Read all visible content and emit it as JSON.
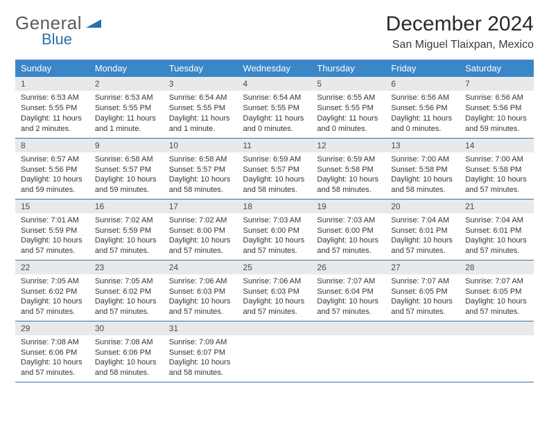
{
  "logo": {
    "text1": "General",
    "text2": "Blue"
  },
  "title": "December 2024",
  "location": "San Miguel Tlaixpan, Mexico",
  "colors": {
    "header_bg": "#3a87c8",
    "header_text": "#ffffff",
    "daynum_bg": "#e7e9eb",
    "row_border": "#3a6fa0",
    "logo_gray": "#5a5a5a",
    "logo_blue": "#2a6fb0"
  },
  "week_headers": [
    "Sunday",
    "Monday",
    "Tuesday",
    "Wednesday",
    "Thursday",
    "Friday",
    "Saturday"
  ],
  "days": [
    {
      "n": "1",
      "sr": "6:53 AM",
      "ss": "5:55 PM",
      "dl": "11 hours and 2 minutes."
    },
    {
      "n": "2",
      "sr": "6:53 AM",
      "ss": "5:55 PM",
      "dl": "11 hours and 1 minute."
    },
    {
      "n": "3",
      "sr": "6:54 AM",
      "ss": "5:55 PM",
      "dl": "11 hours and 1 minute."
    },
    {
      "n": "4",
      "sr": "6:54 AM",
      "ss": "5:55 PM",
      "dl": "11 hours and 0 minutes."
    },
    {
      "n": "5",
      "sr": "6:55 AM",
      "ss": "5:55 PM",
      "dl": "11 hours and 0 minutes."
    },
    {
      "n": "6",
      "sr": "6:56 AM",
      "ss": "5:56 PM",
      "dl": "11 hours and 0 minutes."
    },
    {
      "n": "7",
      "sr": "6:56 AM",
      "ss": "5:56 PM",
      "dl": "10 hours and 59 minutes."
    },
    {
      "n": "8",
      "sr": "6:57 AM",
      "ss": "5:56 PM",
      "dl": "10 hours and 59 minutes."
    },
    {
      "n": "9",
      "sr": "6:58 AM",
      "ss": "5:57 PM",
      "dl": "10 hours and 59 minutes."
    },
    {
      "n": "10",
      "sr": "6:58 AM",
      "ss": "5:57 PM",
      "dl": "10 hours and 58 minutes."
    },
    {
      "n": "11",
      "sr": "6:59 AM",
      "ss": "5:57 PM",
      "dl": "10 hours and 58 minutes."
    },
    {
      "n": "12",
      "sr": "6:59 AM",
      "ss": "5:58 PM",
      "dl": "10 hours and 58 minutes."
    },
    {
      "n": "13",
      "sr": "7:00 AM",
      "ss": "5:58 PM",
      "dl": "10 hours and 58 minutes."
    },
    {
      "n": "14",
      "sr": "7:00 AM",
      "ss": "5:58 PM",
      "dl": "10 hours and 57 minutes."
    },
    {
      "n": "15",
      "sr": "7:01 AM",
      "ss": "5:59 PM",
      "dl": "10 hours and 57 minutes."
    },
    {
      "n": "16",
      "sr": "7:02 AM",
      "ss": "5:59 PM",
      "dl": "10 hours and 57 minutes."
    },
    {
      "n": "17",
      "sr": "7:02 AM",
      "ss": "6:00 PM",
      "dl": "10 hours and 57 minutes."
    },
    {
      "n": "18",
      "sr": "7:03 AM",
      "ss": "6:00 PM",
      "dl": "10 hours and 57 minutes."
    },
    {
      "n": "19",
      "sr": "7:03 AM",
      "ss": "6:00 PM",
      "dl": "10 hours and 57 minutes."
    },
    {
      "n": "20",
      "sr": "7:04 AM",
      "ss": "6:01 PM",
      "dl": "10 hours and 57 minutes."
    },
    {
      "n": "21",
      "sr": "7:04 AM",
      "ss": "6:01 PM",
      "dl": "10 hours and 57 minutes."
    },
    {
      "n": "22",
      "sr": "7:05 AM",
      "ss": "6:02 PM",
      "dl": "10 hours and 57 minutes."
    },
    {
      "n": "23",
      "sr": "7:05 AM",
      "ss": "6:02 PM",
      "dl": "10 hours and 57 minutes."
    },
    {
      "n": "24",
      "sr": "7:06 AM",
      "ss": "6:03 PM",
      "dl": "10 hours and 57 minutes."
    },
    {
      "n": "25",
      "sr": "7:06 AM",
      "ss": "6:03 PM",
      "dl": "10 hours and 57 minutes."
    },
    {
      "n": "26",
      "sr": "7:07 AM",
      "ss": "6:04 PM",
      "dl": "10 hours and 57 minutes."
    },
    {
      "n": "27",
      "sr": "7:07 AM",
      "ss": "6:05 PM",
      "dl": "10 hours and 57 minutes."
    },
    {
      "n": "28",
      "sr": "7:07 AM",
      "ss": "6:05 PM",
      "dl": "10 hours and 57 minutes."
    },
    {
      "n": "29",
      "sr": "7:08 AM",
      "ss": "6:06 PM",
      "dl": "10 hours and 57 minutes."
    },
    {
      "n": "30",
      "sr": "7:08 AM",
      "ss": "6:06 PM",
      "dl": "10 hours and 58 minutes."
    },
    {
      "n": "31",
      "sr": "7:09 AM",
      "ss": "6:07 PM",
      "dl": "10 hours and 58 minutes."
    }
  ],
  "labels": {
    "sunrise": "Sunrise:",
    "sunset": "Sunset:",
    "daylight": "Daylight:"
  }
}
